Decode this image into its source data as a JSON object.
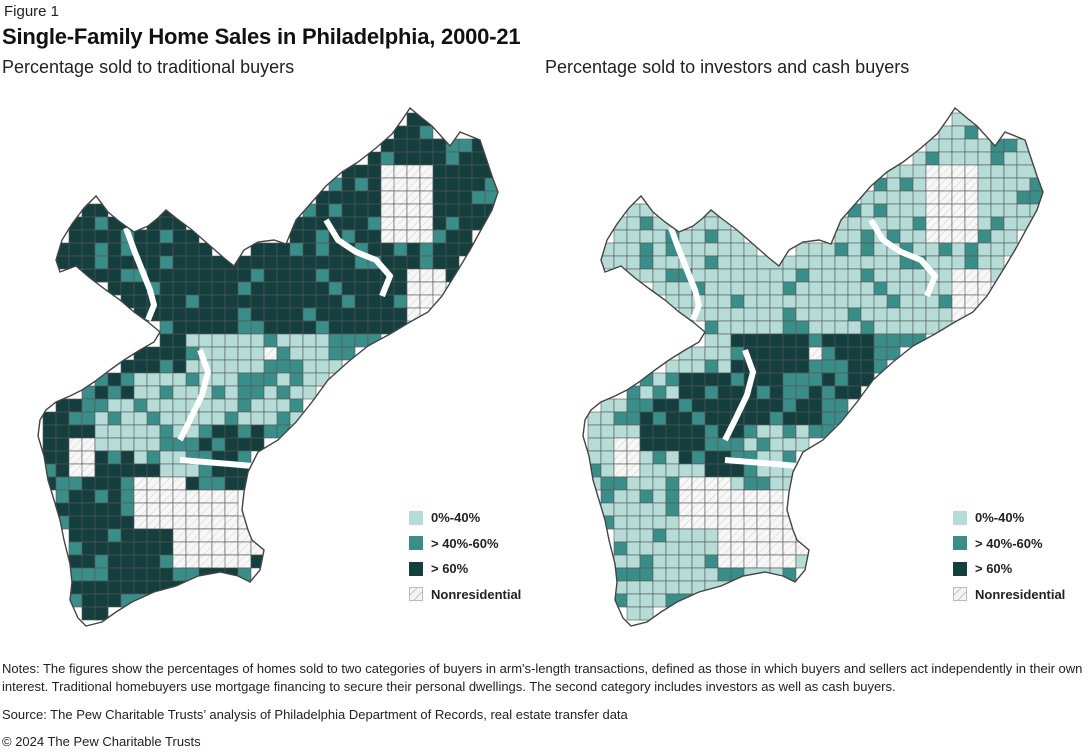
{
  "header": {
    "figure_label": "Figure 1",
    "title": "Single-Family Home Sales in Philadelphia, 2000-21"
  },
  "maps": [
    {
      "subtitle": "Percentage sold to traditional buyers",
      "base_class": "dark",
      "legend": [
        "0%-40%",
        "> 40%-60%",
        "> 60%",
        "Nonresidential"
      ]
    },
    {
      "subtitle": "Percentage sold to investors and cash buyers",
      "base_class": "light",
      "legend": [
        "0%-40%",
        "> 40%-60%",
        "> 60%",
        "Nonresidential"
      ]
    }
  ],
  "colors": {
    "light": "#b5dcd6",
    "mid": "#3a8e8a",
    "dark": "#143f3e",
    "nonresidential": "#f2f2f2",
    "border": "#555555"
  },
  "footer": {
    "notes": "Notes: The figures show the percentages of homes sold to two categories of buyers in arm's-length transactions, defined as those in which buyers and sellers act independently in their own interest. Traditional homebuyers use mortgage financing to secure their personal dwellings. The second category includes investors as well as cash buyers.",
    "source": "Source: The Pew Charitable Trusts’ analysis of Philadelphia Department of Records, real estate transfer data",
    "copyright": "© 2024 The Pew Charitable Trusts"
  }
}
